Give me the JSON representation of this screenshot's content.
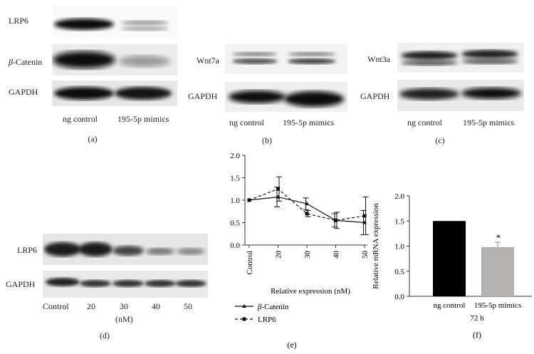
{
  "panel_a": {
    "rows": [
      {
        "label": "LRP6"
      },
      {
        "label": "β-Catenin"
      },
      {
        "label": "GAPDH"
      }
    ],
    "lanes": [
      "ng control",
      "195-5p mimics"
    ],
    "caption": "(a)"
  },
  "panel_b": {
    "rows": [
      {
        "label": "Wnt7a"
      },
      {
        "label": "GAPDH"
      }
    ],
    "lanes": [
      "ng control",
      "195-5p mimics"
    ],
    "caption": "(b)"
  },
  "panel_c": {
    "rows": [
      {
        "label": "Wnt3a"
      },
      {
        "label": "GAPDH"
      }
    ],
    "lanes": [
      "ng control",
      "195-5p mimics"
    ],
    "caption": "(c)"
  },
  "panel_d": {
    "rows": [
      {
        "label": "LRP6"
      },
      {
        "label": "GAPDH"
      }
    ],
    "lanes": [
      "Control",
      "20",
      "30",
      "40",
      "50"
    ],
    "unit": "(nM)",
    "caption": "(d)"
  },
  "chart_data": [
    {
      "type": "line",
      "panel": "(e)",
      "categories": [
        "Control",
        "20",
        "30",
        "40",
        "50"
      ],
      "xlabel": "Relative expression (nM)",
      "ylim": [
        0,
        2.0
      ],
      "yticks": [
        "0.0",
        "0.5",
        "1.0",
        "1.5",
        "2.0"
      ],
      "series": [
        {
          "name": "β-Catenin",
          "style": "solid",
          "marker": "triangle",
          "values": [
            1.0,
            1.07,
            0.92,
            0.55,
            0.5
          ],
          "errors": [
            0.0,
            0.22,
            0.13,
            0.15,
            0.27
          ]
        },
        {
          "name": "LRP6",
          "style": "dashed",
          "marker": "square",
          "values": [
            1.0,
            1.25,
            0.7,
            0.55,
            0.65
          ],
          "errors": [
            0.0,
            0.27,
            0.07,
            0.18,
            0.42
          ]
        }
      ]
    },
    {
      "type": "bar",
      "panel": "(f)",
      "categories": [
        "ng control",
        "195-5p mimics"
      ],
      "values": [
        1.5,
        0.98
      ],
      "errors": [
        0.0,
        0.1
      ],
      "colors": [
        "#000000",
        "#b3b0ad"
      ],
      "ylabel": "Relative mRNA expression",
      "xlabel": "72 h",
      "ylim": [
        0,
        2.0
      ],
      "yticks": [
        "0.0",
        "0.5",
        "1.0",
        "1.5",
        "2.0"
      ],
      "annotation": "*"
    }
  ],
  "captions": {
    "e": "(e)",
    "f": "(f)"
  }
}
